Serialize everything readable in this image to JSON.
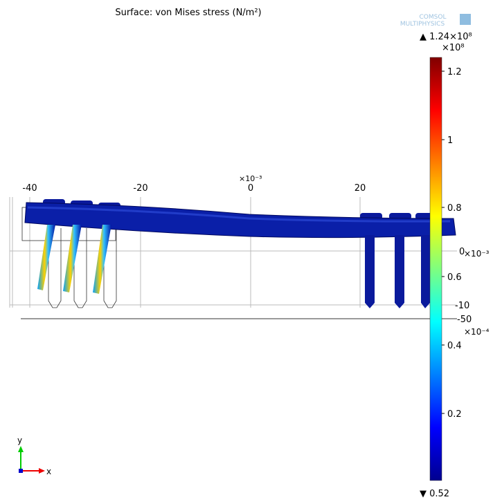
{
  "title": "Surface: von Mises stress (N/m²)",
  "logo": {
    "line1": "COMSOL",
    "line2": "MULTIPHYSICS"
  },
  "x_axis": {
    "multiplier": "×10⁻³",
    "ticks": [
      "-40",
      "-20",
      "0",
      "20"
    ]
  },
  "y_axis": {
    "multiplier": "×10⁻³",
    "ticks": [
      "0",
      "-10"
    ]
  },
  "z_axis": {
    "multiplier": "×10⁻⁴",
    "ticks": [
      "-50"
    ]
  },
  "colorbar": {
    "max_label": "▲ 1.24×10⁸",
    "multiplier": "×10⁸",
    "ticks": [
      "1.2",
      "1",
      "0.8",
      "0.6",
      "0.4",
      "0.2"
    ],
    "min_label": "▼ 0.52"
  },
  "triad": {
    "y": "y",
    "x": "x"
  }
}
